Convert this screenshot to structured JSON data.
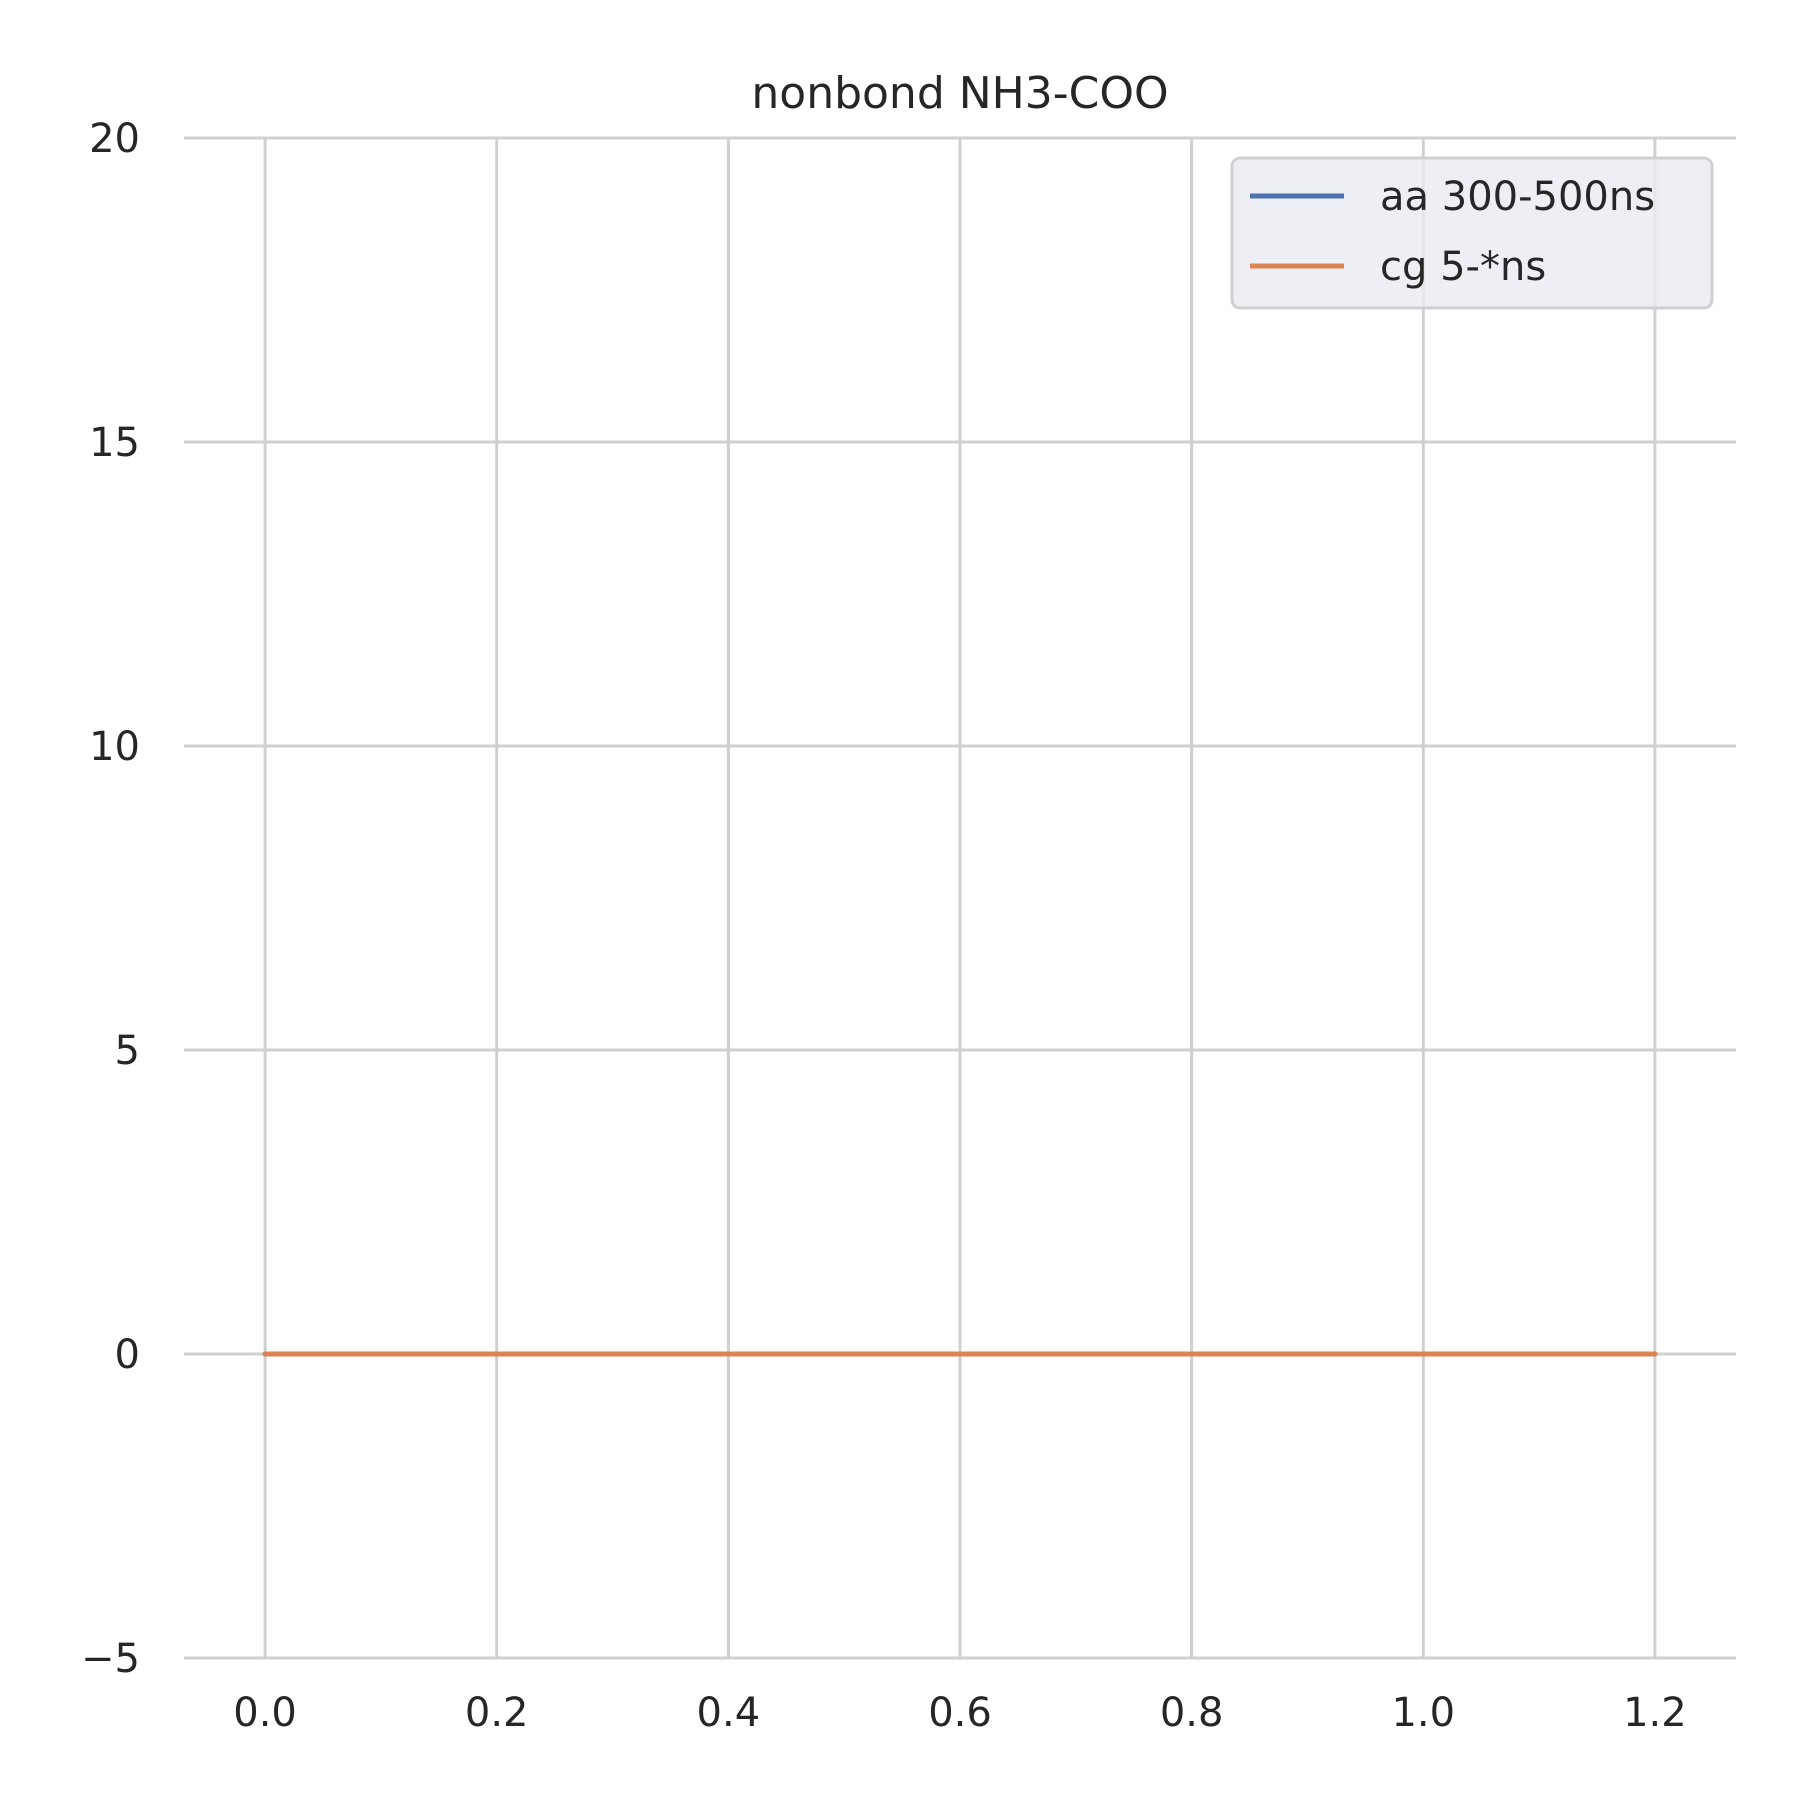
{
  "chart_data": {
    "type": "line",
    "title": "nonbond NH3-COO",
    "xlabel": "",
    "ylabel": "",
    "xlim": [
      -0.07,
      1.27
    ],
    "ylim": [
      -5,
      20
    ],
    "x_ticks": [
      0.0,
      0.2,
      0.4,
      0.6,
      0.8,
      1.0,
      1.2
    ],
    "x_tick_labels": [
      "0.0",
      "0.2",
      "0.4",
      "0.6",
      "0.8",
      "1.0",
      "1.2"
    ],
    "y_ticks": [
      -5,
      0,
      5,
      10,
      15,
      20
    ],
    "y_tick_labels": [
      "−5",
      "0",
      "5",
      "10",
      "15",
      "20"
    ],
    "grid": true,
    "legend_position": "top-right",
    "series": [
      {
        "name": "aa 300-500ns",
        "color": "#4c72b0",
        "x": [
          0.0,
          0.2,
          0.4,
          0.6,
          0.8,
          1.0,
          1.2
        ],
        "y": [
          0,
          0,
          0,
          0,
          0,
          0,
          0
        ]
      },
      {
        "name": "cg 5-*ns",
        "color": "#dd8452",
        "x": [
          0.0,
          0.2,
          0.4,
          0.6,
          0.8,
          1.0,
          1.2
        ],
        "y": [
          0,
          0,
          0,
          0,
          0,
          0,
          0
        ]
      }
    ]
  }
}
